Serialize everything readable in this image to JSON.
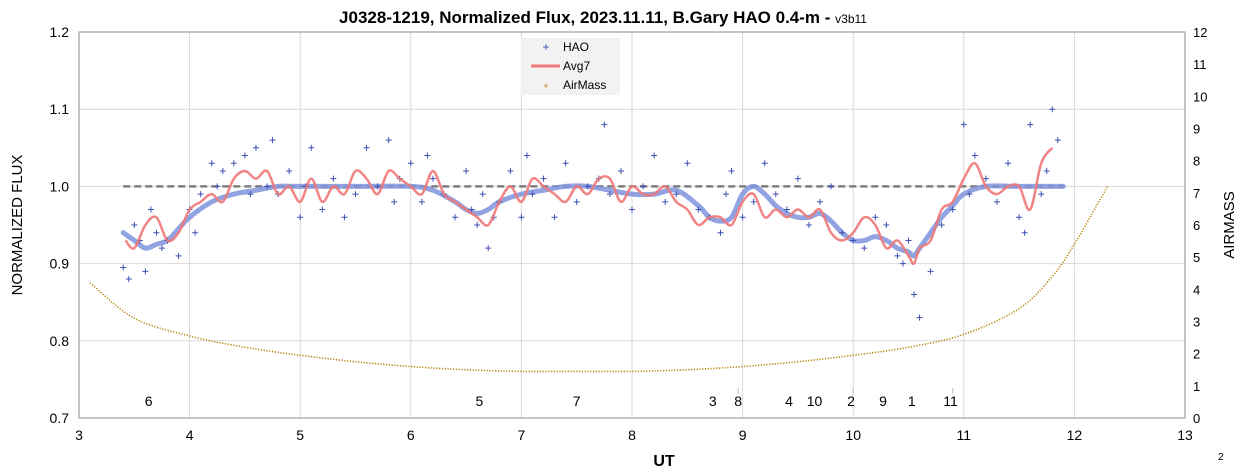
{
  "page_number": "2",
  "chart_data": {
    "type": "scatter",
    "title": "J0328-1219, Normalized Flux, 2023.11.11, B.Gary HAO 0.4-m",
    "title_separator": " - ",
    "version": "v3b11",
    "xlabel": "UT",
    "ylabel": "NORMALIZED FLUX",
    "y2label": "AIRMASS",
    "xlim": [
      3,
      13
    ],
    "ylim": [
      0.7,
      1.2
    ],
    "y2lim": [
      0,
      12
    ],
    "x_ticks": [
      "3",
      "4",
      "5",
      "6",
      "7",
      "8",
      "9",
      "10",
      "11",
      "12",
      "13"
    ],
    "y_ticks": [
      "0.7",
      "0.8",
      "0.9",
      "1.0",
      "1.1",
      "1.2"
    ],
    "y2_ticks": [
      "0",
      "1",
      "2",
      "3",
      "4",
      "5",
      "6",
      "7",
      "8",
      "9",
      "10",
      "11",
      "12"
    ],
    "grid": true,
    "legend_position": "top-center",
    "legend": [
      {
        "name": "HAO",
        "symbol": "+",
        "color": "#3f51b5"
      },
      {
        "name": "Avg7",
        "symbol": "line",
        "color": "#f07878"
      },
      {
        "name": "AirMass",
        "symbol": "+",
        "color": "#c87800"
      }
    ],
    "colors": {
      "hao": "#3f51b5",
      "avg7": "#f07878",
      "model": "#7f93dc",
      "reference": "#7f7f7f",
      "airmass": "#b8860b"
    },
    "reference_level": 1.0,
    "annotations": [
      {
        "x": 3.63,
        "text": "6"
      },
      {
        "x": 6.62,
        "text": "5"
      },
      {
        "x": 7.5,
        "text": "7"
      },
      {
        "x": 8.73,
        "text": "3"
      },
      {
        "x": 8.96,
        "text": "8"
      },
      {
        "x": 9.42,
        "text": "4"
      },
      {
        "x": 9.65,
        "text": "10"
      },
      {
        "x": 9.98,
        "text": "2"
      },
      {
        "x": 10.27,
        "text": "9"
      },
      {
        "x": 10.53,
        "text": "1"
      },
      {
        "x": 10.88,
        "text": "11"
      }
    ],
    "annotation_markers": [
      8.96,
      10.0,
      10.9
    ],
    "series": [
      {
        "name": "HAO",
        "x": [
          3.4,
          3.45,
          3.5,
          3.55,
          3.6,
          3.65,
          3.7,
          3.75,
          3.8,
          3.9,
          4.0,
          4.05,
          4.1,
          4.2,
          4.25,
          4.3,
          4.4,
          4.5,
          4.55,
          4.6,
          4.7,
          4.75,
          4.8,
          4.9,
          5.0,
          5.05,
          5.1,
          5.2,
          5.3,
          5.4,
          5.5,
          5.6,
          5.7,
          5.8,
          5.85,
          5.9,
          6.0,
          6.1,
          6.15,
          6.2,
          6.3,
          6.4,
          6.5,
          6.55,
          6.6,
          6.65,
          6.7,
          6.75,
          6.8,
          6.9,
          7.0,
          7.05,
          7.1,
          7.2,
          7.3,
          7.4,
          7.5,
          7.6,
          7.7,
          7.75,
          7.8,
          7.9,
          8.0,
          8.1,
          8.2,
          8.3,
          8.4,
          8.5,
          8.6,
          8.7,
          8.8,
          8.85,
          8.9,
          9.0,
          9.1,
          9.2,
          9.3,
          9.4,
          9.5,
          9.6,
          9.7,
          9.8,
          9.9,
          10.0,
          10.1,
          10.2,
          10.3,
          10.4,
          10.45,
          10.5,
          10.55,
          10.6,
          10.7,
          10.8,
          10.9,
          11.0,
          11.05,
          11.1,
          11.2,
          11.3,
          11.4,
          11.5,
          11.55,
          11.6,
          11.7,
          11.75,
          11.8,
          11.85
        ],
        "y": [
          0.895,
          0.88,
          0.95,
          0.93,
          0.89,
          0.97,
          0.94,
          0.92,
          0.93,
          0.91,
          0.97,
          0.94,
          0.99,
          1.03,
          1.0,
          1.02,
          1.03,
          1.04,
          0.99,
          1.05,
          1.0,
          1.06,
          0.99,
          1.02,
          0.96,
          1.0,
          1.05,
          0.97,
          1.01,
          0.96,
          0.99,
          1.05,
          1.0,
          1.06,
          0.98,
          1.01,
          1.03,
          0.98,
          1.04,
          1.01,
          0.99,
          0.96,
          1.02,
          0.97,
          0.95,
          0.99,
          0.92,
          0.96,
          0.98,
          1.02,
          0.96,
          1.04,
          0.99,
          1.01,
          0.96,
          1.03,
          0.98,
          1.0,
          1.01,
          1.08,
          0.99,
          1.02,
          0.97,
          1.0,
          1.04,
          0.98,
          0.99,
          1.03,
          0.97,
          0.96,
          0.94,
          0.99,
          1.02,
          0.96,
          0.98,
          1.03,
          0.99,
          0.97,
          1.01,
          0.95,
          0.98,
          1.0,
          0.94,
          0.93,
          0.92,
          0.96,
          0.95,
          0.91,
          0.9,
          0.93,
          0.86,
          0.83,
          0.89,
          0.95,
          0.97,
          1.08,
          0.99,
          1.04,
          1.01,
          0.98,
          1.03,
          0.96,
          0.94,
          1.08,
          0.99,
          1.02,
          1.1,
          1.06
        ]
      },
      {
        "name": "Avg7",
        "x": [
          3.42,
          3.5,
          3.6,
          3.7,
          3.8,
          3.9,
          4.0,
          4.1,
          4.2,
          4.3,
          4.4,
          4.5,
          4.6,
          4.7,
          4.8,
          4.9,
          5.0,
          5.1,
          5.2,
          5.3,
          5.4,
          5.5,
          5.6,
          5.7,
          5.8,
          5.9,
          6.0,
          6.1,
          6.2,
          6.3,
          6.4,
          6.5,
          6.6,
          6.7,
          6.8,
          6.9,
          7.0,
          7.1,
          7.2,
          7.3,
          7.4,
          7.5,
          7.6,
          7.7,
          7.8,
          7.9,
          8.0,
          8.1,
          8.2,
          8.3,
          8.4,
          8.5,
          8.6,
          8.7,
          8.8,
          8.9,
          9.0,
          9.1,
          9.2,
          9.3,
          9.4,
          9.5,
          9.6,
          9.7,
          9.8,
          9.9,
          10.0,
          10.1,
          10.2,
          10.3,
          10.4,
          10.5,
          10.55,
          10.6,
          10.7,
          10.8,
          10.9,
          11.0,
          11.1,
          11.2,
          11.3,
          11.4,
          11.5,
          11.6,
          11.7,
          11.8
        ],
        "y": [
          0.93,
          0.92,
          0.95,
          0.96,
          0.93,
          0.94,
          0.97,
          0.98,
          0.99,
          0.98,
          1.01,
          1.02,
          1.01,
          1.02,
          0.99,
          1.0,
          0.98,
          1.01,
          0.98,
          1.0,
          0.99,
          1.02,
          1.01,
          0.99,
          1.02,
          1.01,
          1.0,
          0.99,
          1.02,
          0.99,
          0.98,
          0.97,
          0.96,
          0.95,
          0.98,
          1.0,
          0.98,
          1.01,
          1.0,
          0.99,
          0.98,
          1.0,
          0.99,
          1.01,
          1.01,
          0.98,
          1.0,
          0.99,
          0.99,
          1.0,
          0.98,
          0.97,
          0.95,
          0.96,
          0.96,
          0.95,
          0.98,
          0.99,
          0.96,
          0.97,
          0.96,
          0.97,
          0.96,
          0.97,
          0.94,
          0.93,
          0.94,
          0.96,
          0.95,
          0.92,
          0.93,
          0.91,
          0.9,
          0.92,
          0.93,
          0.97,
          0.98,
          1.01,
          1.03,
          1.0,
          0.99,
          1.0,
          1.0,
          0.97,
          1.03,
          1.05
        ]
      },
      {
        "name": "Model",
        "x": [
          3.4,
          3.5,
          3.6,
          3.7,
          3.8,
          3.9,
          4.0,
          4.2,
          4.4,
          4.6,
          4.8,
          5.0,
          5.5,
          6.0,
          6.2,
          6.4,
          6.5,
          6.6,
          6.7,
          6.8,
          7.0,
          7.2,
          7.4,
          7.6,
          7.8,
          8.0,
          8.2,
          8.4,
          8.6,
          8.7,
          8.8,
          8.9,
          9.0,
          9.1,
          9.2,
          9.3,
          9.4,
          9.5,
          9.6,
          9.7,
          9.8,
          9.9,
          10.0,
          10.1,
          10.2,
          10.3,
          10.4,
          10.5,
          10.55,
          10.6,
          10.7,
          10.8,
          10.9,
          11.0,
          11.2,
          11.5,
          11.9
        ],
        "y": [
          0.94,
          0.93,
          0.92,
          0.925,
          0.93,
          0.945,
          0.96,
          0.98,
          0.99,
          0.995,
          1.0,
          1.0,
          1.0,
          1.0,
          0.995,
          0.98,
          0.97,
          0.965,
          0.97,
          0.98,
          0.99,
          0.995,
          1.0,
          1.0,
          0.995,
          0.99,
          0.99,
          0.995,
          0.975,
          0.96,
          0.955,
          0.96,
          0.99,
          1.0,
          0.99,
          0.975,
          0.965,
          0.96,
          0.96,
          0.965,
          0.955,
          0.94,
          0.93,
          0.93,
          0.935,
          0.93,
          0.92,
          0.915,
          0.91,
          0.92,
          0.94,
          0.96,
          0.975,
          0.99,
          1.0,
          1.0,
          1.0
        ]
      },
      {
        "name": "AirMass",
        "x": [
          3.1,
          3.5,
          4.0,
          4.5,
          5.0,
          5.5,
          6.0,
          6.5,
          7.0,
          7.5,
          8.0,
          8.5,
          9.0,
          9.5,
          10.0,
          10.5,
          11.0,
          11.5,
          11.8,
          12.0,
          12.2,
          12.3
        ],
        "y": [
          4.2,
          3.1,
          2.55,
          2.2,
          1.95,
          1.75,
          1.6,
          1.5,
          1.45,
          1.45,
          1.45,
          1.5,
          1.6,
          1.75,
          1.95,
          2.2,
          2.6,
          3.4,
          4.4,
          5.4,
          6.6,
          7.2
        ]
      }
    ]
  }
}
